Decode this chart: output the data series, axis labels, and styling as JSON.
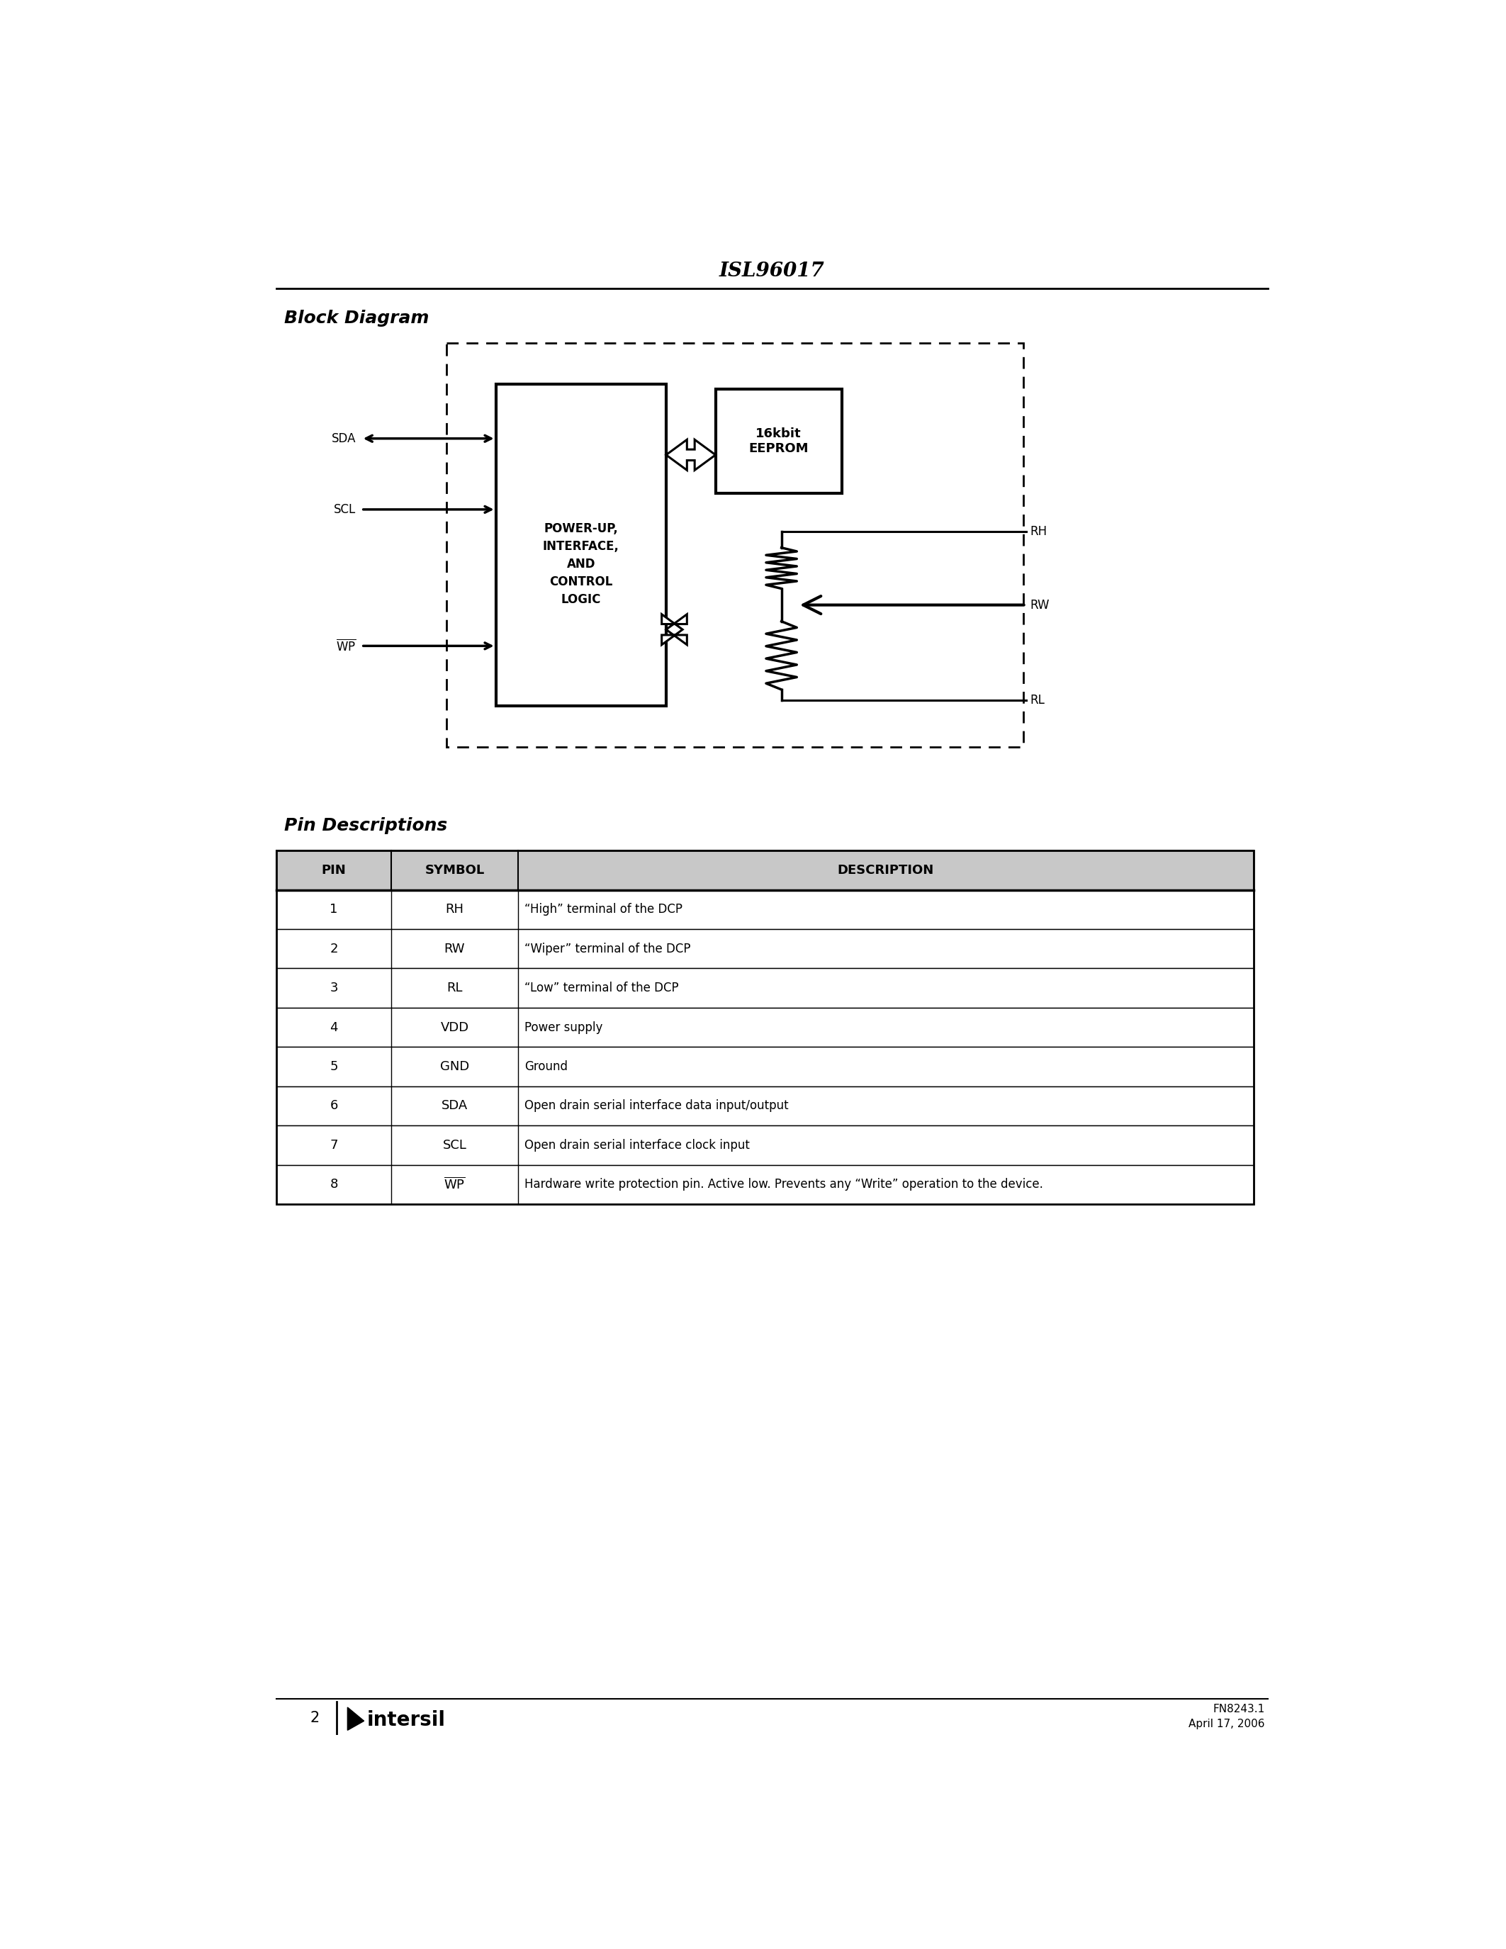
{
  "title": "ISL96017",
  "section1_title": "Block Diagram",
  "section2_title": "Pin Descriptions",
  "page_number": "2",
  "footer_text1": "FN8243.1",
  "footer_text2": "April 17, 2006",
  "table_headers": [
    "PIN",
    "SYMBOL",
    "DESCRIPTION"
  ],
  "table_rows": [
    [
      "1",
      "RH",
      "“High” terminal of the DCP"
    ],
    [
      "2",
      "RW",
      "“Wiper” terminal of the DCP"
    ],
    [
      "3",
      "RL",
      "“Low” terminal of the DCP"
    ],
    [
      "4",
      "VDD",
      "Power supply"
    ],
    [
      "5",
      "GND",
      "Ground"
    ],
    [
      "6",
      "SDA",
      "Open drain serial interface data input/output"
    ],
    [
      "7",
      "SCL",
      "Open drain serial interface clock input"
    ],
    [
      "8",
      "WP",
      "Hardware write protection pin. Active low. Prevents any “Write” operation to the device."
    ]
  ],
  "background_color": "#ffffff",
  "text_color": "#000000"
}
